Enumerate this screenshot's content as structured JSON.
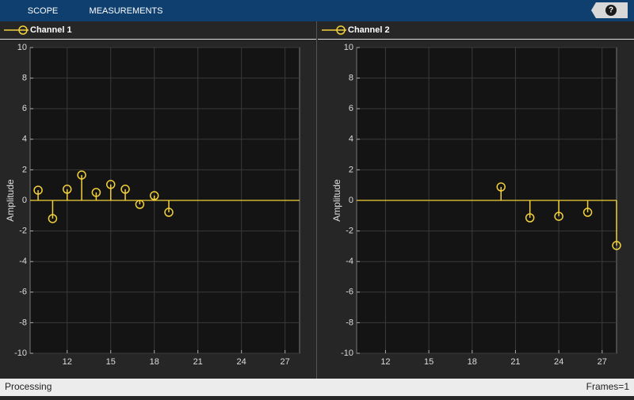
{
  "toolbar": {
    "tabs": [
      "SCOPE",
      "MEASUREMENTS"
    ],
    "help": "?"
  },
  "chart_data": [
    {
      "type": "stem",
      "ylabel": "Amplitude",
      "x": [
        10,
        11,
        12,
        13,
        14,
        15,
        16,
        17,
        18,
        19
      ],
      "series": [
        {
          "name": "Channel 1",
          "color": "#f2d03b",
          "values": [
            0.67,
            -1.19,
            0.73,
            1.66,
            0.52,
            1.04,
            0.73,
            -0.26,
            0.31,
            -0.78
          ]
        }
      ],
      "xlim": [
        9.45,
        28
      ],
      "ylim": [
        -10,
        10
      ],
      "xticks": [
        12,
        15,
        18,
        21,
        24,
        27
      ],
      "yticks": [
        -10,
        -8,
        -6,
        -4,
        -2,
        0,
        2,
        4,
        6,
        8,
        10
      ],
      "grid": true
    },
    {
      "type": "stem",
      "ylabel": "Amplitude",
      "x": [
        20,
        22,
        24,
        26,
        28
      ],
      "series": [
        {
          "name": "Channel 2",
          "color": "#f2d03b",
          "values": [
            0.88,
            -1.14,
            -1.04,
            -0.78,
            -2.95
          ]
        }
      ],
      "xlim": [
        10,
        28
      ],
      "ylim": [
        -10,
        10
      ],
      "xticks": [
        12,
        15,
        18,
        21,
        24,
        27
      ],
      "yticks": [
        -10,
        -8,
        -6,
        -4,
        -2,
        0,
        2,
        4,
        6,
        8,
        10
      ],
      "grid": true
    }
  ],
  "status": {
    "left": "Processing",
    "right": "Frames=1"
  }
}
